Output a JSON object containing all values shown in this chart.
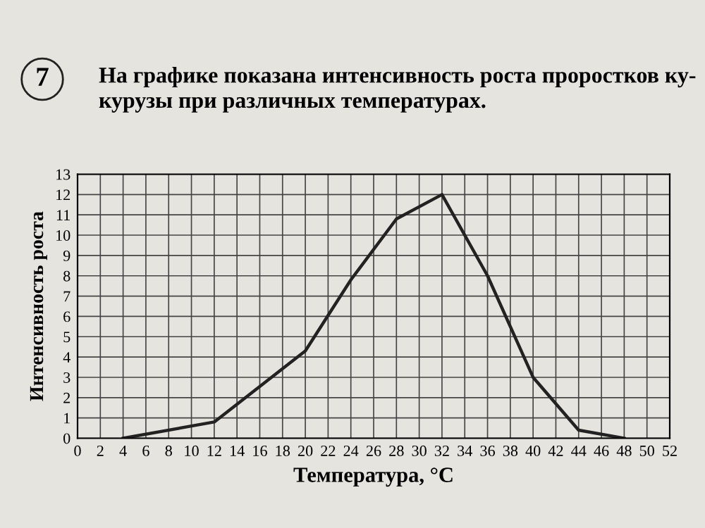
{
  "chart_data": {
    "type": "line",
    "title": "На графике показана интенсивность роста проростков ку-\nкурузы при различных температурах.",
    "annotations": [
      "7"
    ],
    "xlabel": "Температура, °C",
    "ylabel": "Интенсивность роста",
    "x": [
      4,
      12,
      20,
      24,
      28,
      32,
      36,
      40,
      44,
      48
    ],
    "values": [
      0,
      0.8,
      4.3,
      7.8,
      10.8,
      12,
      8,
      3,
      0.4,
      0
    ],
    "color": "#222222",
    "xlim": [
      0,
      52
    ],
    "ylim": [
      0,
      13
    ],
    "xticks": [
      0,
      2,
      4,
      6,
      8,
      10,
      12,
      14,
      16,
      18,
      20,
      22,
      24,
      26,
      28,
      30,
      32,
      34,
      36,
      38,
      40,
      42,
      44,
      46,
      48,
      50,
      52
    ],
    "yticks": [
      0,
      1,
      2,
      3,
      4,
      5,
      6,
      7,
      8,
      9,
      10,
      11,
      12,
      13
    ],
    "grid": true,
    "marker": "none",
    "line_style": "solid"
  }
}
